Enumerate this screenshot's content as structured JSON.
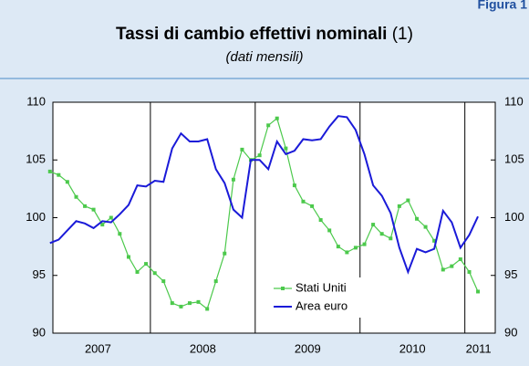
{
  "figure_label": "Figura 1",
  "chart_data": {
    "type": "line",
    "title": "Tassi di cambio effettivi nominali",
    "title_note": "(1)",
    "subtitle": "(dati mensili)",
    "x": [
      2007.042,
      2007.125,
      2007.208,
      2007.292,
      2007.375,
      2007.458,
      2007.542,
      2007.625,
      2007.708,
      2007.792,
      2007.875,
      2007.958,
      2008.042,
      2008.125,
      2008.208,
      2008.292,
      2008.375,
      2008.458,
      2008.542,
      2008.625,
      2008.708,
      2008.792,
      2008.875,
      2008.958,
      2009.042,
      2009.125,
      2009.208,
      2009.292,
      2009.375,
      2009.458,
      2009.542,
      2009.625,
      2009.708,
      2009.792,
      2009.875,
      2009.958,
      2010.042,
      2010.125,
      2010.208,
      2010.292,
      2010.375,
      2010.458,
      2010.542,
      2010.625,
      2010.708,
      2010.792,
      2010.875,
      2010.958,
      2011.042,
      2011.125
    ],
    "series": [
      {
        "name": "Stati Uniti",
        "color": "#4cc94c",
        "marker": true,
        "values": [
          104.0,
          103.7,
          103.1,
          101.8,
          101.0,
          100.7,
          99.4,
          100.0,
          98.6,
          96.6,
          95.3,
          96.0,
          95.2,
          94.5,
          92.6,
          92.3,
          92.6,
          92.7,
          92.1,
          94.5,
          96.9,
          103.3,
          105.9,
          105.0,
          105.4,
          108.0,
          108.6,
          106.0,
          102.8,
          101.4,
          101.0,
          99.8,
          98.9,
          97.5,
          97.0,
          97.4,
          97.7,
          99.4,
          98.6,
          98.2,
          101.0,
          101.5,
          99.9,
          99.2,
          98.0,
          95.5,
          95.8,
          96.4,
          95.3,
          93.6
        ]
      },
      {
        "name": "Area euro",
        "color": "#1a1ad8",
        "marker": false,
        "values": [
          97.8,
          98.1,
          98.9,
          99.7,
          99.5,
          99.1,
          99.7,
          99.6,
          100.3,
          101.1,
          102.8,
          102.7,
          103.2,
          103.1,
          106.0,
          107.3,
          106.6,
          106.6,
          106.8,
          104.2,
          103.0,
          100.7,
          100.0,
          105.0,
          105.0,
          104.2,
          106.6,
          105.5,
          105.8,
          106.8,
          106.7,
          106.8,
          107.9,
          108.8,
          108.7,
          107.6,
          105.5,
          102.8,
          101.9,
          100.4,
          97.4,
          95.3,
          97.3,
          97.0,
          97.3,
          100.6,
          99.6,
          97.4,
          98.5,
          100.1
        ]
      }
    ],
    "xlim": [
      2007.07,
      2011.29
    ],
    "xticks": [
      {
        "value": 2007.5,
        "label": "2007"
      },
      {
        "value": 2008.5,
        "label": "2008"
      },
      {
        "value": 2009.5,
        "label": "2009"
      },
      {
        "value": 2010.5,
        "label": "2010"
      },
      {
        "value": 2011.13,
        "label": "2011"
      }
    ],
    "xgrid": [
      2008,
      2009,
      2010,
      2011
    ],
    "ylim": [
      90,
      110
    ],
    "yticks": [
      90,
      95,
      100,
      105,
      110
    ],
    "legend": "bottom-center"
  }
}
